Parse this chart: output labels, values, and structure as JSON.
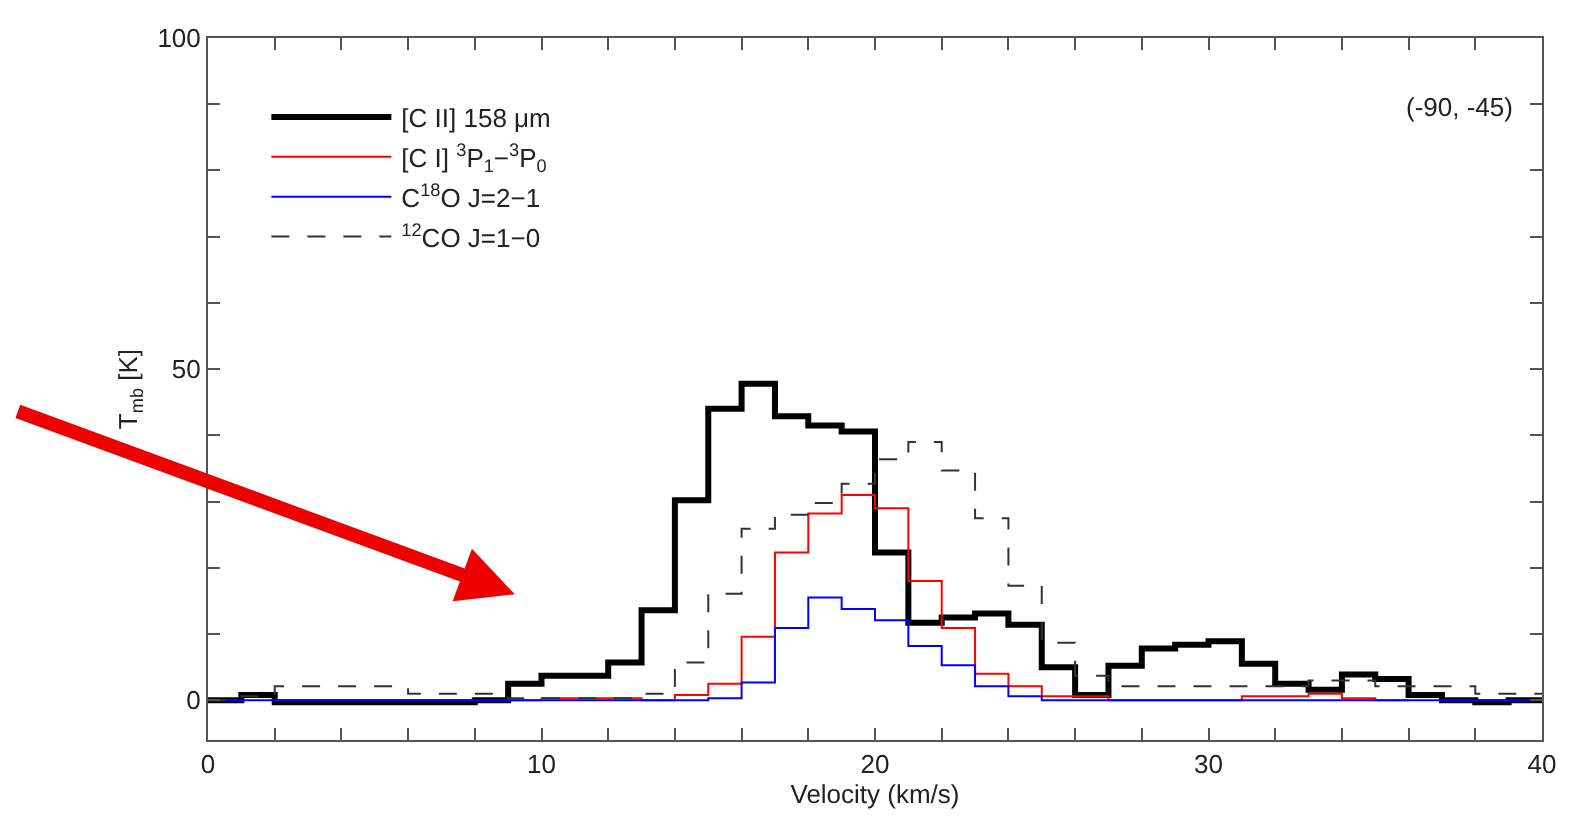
{
  "chart_data": {
    "type": "step",
    "xlabel": "Velocity (km/s)",
    "ylabel": "T$_{mb}$ [K]",
    "x": [
      0,
      1,
      2,
      3,
      4,
      5,
      6,
      7,
      8,
      9,
      10,
      11,
      12,
      13,
      14,
      15,
      16,
      17,
      18,
      19,
      20,
      21,
      22,
      23,
      24,
      25,
      26,
      27,
      28,
      29,
      30,
      31,
      32,
      33,
      34,
      35,
      36,
      37,
      38,
      39,
      40
    ],
    "series": [
      {
        "name": "[C II] 158 μm",
        "color": "#000000",
        "line_style": "solid",
        "values": [
          0,
          0.8,
          -0.3,
          -0.3,
          -0.3,
          -0.3,
          -0.3,
          -0.3,
          0,
          2.5,
          3.7,
          3.7,
          5.7,
          13.6,
          30.2,
          44,
          47.8,
          42.9,
          41.5,
          40.6,
          22.3,
          11.7,
          12.5,
          13.1,
          11.4,
          5,
          0.8,
          5.2,
          7.8,
          8.4,
          8.9,
          5.5,
          2.5,
          1.6,
          3.9,
          3.2,
          0.8,
          0,
          -0.3,
          0,
          0
        ]
      },
      {
        "name": "[C I] $^{3}$P$_{1}$−$^{3}$P$_{0}$",
        "color": "#ff0000",
        "line_style": "solid",
        "values": [
          null,
          null,
          null,
          null,
          null,
          null,
          null,
          null,
          null,
          0,
          0.3,
          0.3,
          0.3,
          0,
          0.8,
          2.5,
          9.6,
          22.3,
          28.2,
          31,
          29,
          18,
          10.9,
          4,
          2.1,
          0.6,
          0.6,
          0,
          0,
          0,
          0,
          0.6,
          0.6,
          1,
          0.3,
          0,
          0,
          null,
          null,
          null,
          null
        ]
      },
      {
        "name": "C$^{18}$O J=2−1",
        "color": "#0000ff",
        "line_style": "solid",
        "values": [
          0,
          0,
          0,
          0,
          0,
          0,
          0,
          0,
          0,
          0,
          0,
          0,
          0,
          0,
          0,
          0.3,
          2.7,
          10.9,
          15.5,
          13.8,
          12.1,
          8.2,
          5.3,
          2.1,
          0.6,
          0,
          0,
          0,
          0,
          0,
          0,
          0,
          0,
          0,
          0,
          0,
          0,
          0,
          0,
          0,
          0
        ]
      },
      {
        "name": "$^{12}$CO J=1−0",
        "color": "#333333",
        "line_style": "dashed",
        "values": [
          0,
          0.6,
          2.1,
          2.1,
          2.1,
          2.1,
          1,
          1,
          1,
          0.3,
          0.3,
          0.3,
          0.3,
          1,
          5.7,
          16.1,
          25.9,
          28,
          29.8,
          32.7,
          36.4,
          39,
          34.7,
          27.5,
          17.3,
          8.7,
          3.7,
          2.1,
          2.1,
          2.1,
          2.1,
          2.1,
          2.1,
          3,
          3,
          2.1,
          2.1,
          2.1,
          1,
          1,
          1
        ]
      }
    ],
    "xlim": [
      0,
      40
    ],
    "ylim": [
      -6,
      100
    ],
    "xticks": [
      0,
      {
        "value": 2,
        "label": null
      },
      {
        "value": 4,
        "label": null
      },
      {
        "value": 6,
        "label": null
      },
      {
        "value": 8,
        "label": null
      },
      10,
      {
        "value": 12,
        "label": null
      },
      {
        "value": 14,
        "label": null
      },
      {
        "value": 16,
        "label": null
      },
      {
        "value": 18,
        "label": null
      },
      20,
      {
        "value": 22,
        "label": null
      },
      {
        "value": 24,
        "label": null
      },
      {
        "value": 26,
        "label": null
      },
      {
        "value": 28,
        "label": null
      },
      30,
      {
        "value": 32,
        "label": null
      },
      {
        "value": 34,
        "label": null
      },
      {
        "value": 36,
        "label": null
      },
      {
        "value": 38,
        "label": null
      },
      40
    ],
    "yticks": [
      0,
      {
        "value": 10,
        "label": null
      },
      {
        "value": 20,
        "label": null
      },
      {
        "value": 30,
        "label": null
      },
      {
        "value": 40,
        "label": null
      },
      50,
      {
        "value": 60,
        "label": null
      },
      {
        "value": 70,
        "label": null
      },
      {
        "value": 80,
        "label": null
      },
      {
        "value": 90,
        "label": null
      },
      100
    ],
    "annotations": [
      "(-90, -45)"
    ],
    "legend": "top left"
  }
}
